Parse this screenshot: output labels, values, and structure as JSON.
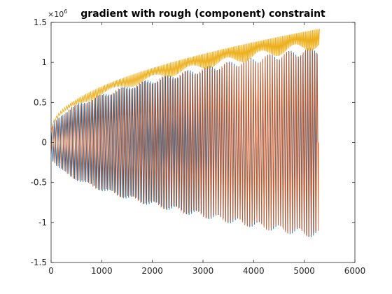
{
  "chart_data": {
    "type": "line",
    "title": "gradient with rough (component) constraint",
    "xlabel": "",
    "ylabel": "",
    "xlim": [
      0,
      6000
    ],
    "ylim": [
      -1.5,
      1.5
    ],
    "y_exponent_label": "×10",
    "y_exponent_power": "6",
    "x_ticks": [
      {
        "value": 0,
        "label": "0"
      },
      {
        "value": 1000,
        "label": "1000"
      },
      {
        "value": 2000,
        "label": "2000"
      },
      {
        "value": 3000,
        "label": "3000"
      },
      {
        "value": 4000,
        "label": "4000"
      },
      {
        "value": 5000,
        "label": "5000"
      },
      {
        "value": 6000,
        "label": "6000"
      }
    ],
    "y_ticks": [
      {
        "value": -1.5,
        "label": "-1.5"
      },
      {
        "value": -1.0,
        "label": "-1"
      },
      {
        "value": -0.5,
        "label": "-0.5"
      },
      {
        "value": 0.0,
        "label": "0"
      },
      {
        "value": 0.5,
        "label": "0.5"
      },
      {
        "value": 1.0,
        "label": "1"
      },
      {
        "value": 1.5,
        "label": "1.5"
      }
    ],
    "grid": false,
    "legend": "none",
    "series": [
      {
        "color": "#0072BD",
        "envelope_start": 0.15,
        "envelope_end": 1.2,
        "x_end": 5250,
        "oscillation": "alternating ±",
        "cycles": 105
      },
      {
        "color": "#D95319",
        "envelope_start": 0.15,
        "envelope_end": 1.2,
        "x_end": 5280,
        "oscillation": "alternating ±",
        "cycles": 105
      },
      {
        "color": "#EDB120",
        "envelope_start": 0.15,
        "envelope_end": 1.42,
        "x_end": 5300,
        "oscillation": "positive band (0.9–1.0 of envelope)",
        "cycles": 200
      }
    ]
  }
}
